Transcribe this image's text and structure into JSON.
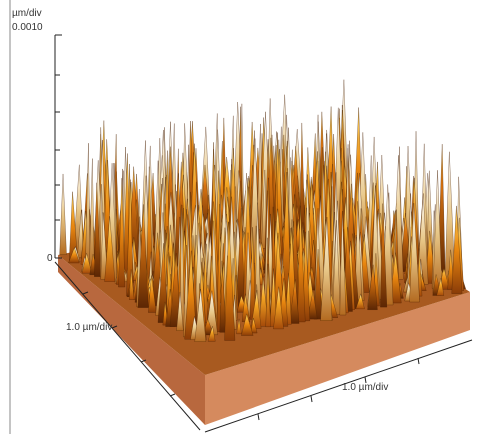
{
  "z_axis": {
    "unit": "µm/div",
    "top_label": "0.0010",
    "bottom_label": "0"
  },
  "left_axis_label": "1.0 µm/div",
  "front_axis_label": "1.0 µm/div"
}
